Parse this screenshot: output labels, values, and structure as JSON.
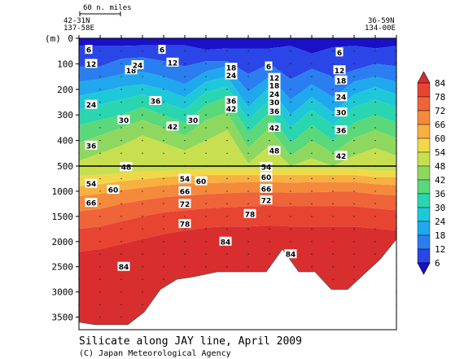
{
  "chart_data": {
    "type": "heatmap",
    "title": "Silicate along JAY line, April 2009",
    "credit": "(C) Japan Meteorological Agency",
    "ylabel": "(m)",
    "scale_bar_label": "60 n. miles",
    "left_station": {
      "lat": "42-31N",
      "lon": "137-58E"
    },
    "right_station": {
      "lat": "36-59N",
      "lon": "134-00E"
    },
    "upper_panel": {
      "ylim": [
        0,
        500
      ],
      "yticks": [
        0,
        100,
        200,
        300,
        400,
        500
      ]
    },
    "lower_panel": {
      "ylim": [
        500,
        3750
      ],
      "yticks": [
        500,
        1000,
        1500,
        2000,
        2500,
        3000,
        3500
      ]
    },
    "colorbar": {
      "levels": [
        6,
        12,
        18,
        24,
        30,
        36,
        42,
        48,
        54,
        60,
        66,
        72,
        78,
        84
      ],
      "colors": [
        "#1a10c8",
        "#2a46e6",
        "#2a7ef0",
        "#1fa8ee",
        "#1fc8d8",
        "#2ad6b0",
        "#5ad87a",
        "#8ed860",
        "#c8e050",
        "#f0d84a",
        "#f8b040",
        "#f58a3c",
        "#ef6438",
        "#e84432",
        "#d92e2e"
      ]
    },
    "contour_labels": [
      {
        "v": "6",
        "x": 12,
        "d": 45
      },
      {
        "v": "6",
        "x": 102,
        "d": 45
      },
      {
        "v": "6",
        "x": 233,
        "d": 110
      },
      {
        "v": "6",
        "x": 320,
        "d": 55
      },
      {
        "v": "12",
        "x": 15,
        "d": 100
      },
      {
        "v": "12",
        "x": 115,
        "d": 95
      },
      {
        "v": "12",
        "x": 240,
        "d": 155
      },
      {
        "v": "12",
        "x": 320,
        "d": 125
      },
      {
        "v": "18",
        "x": 64,
        "d": 125
      },
      {
        "v": "18",
        "x": 187,
        "d": 115
      },
      {
        "v": "18",
        "x": 240,
        "d": 185
      },
      {
        "v": "18",
        "x": 322,
        "d": 165
      },
      {
        "v": "24",
        "x": 72,
        "d": 105
      },
      {
        "v": "24",
        "x": 15,
        "d": 260
      },
      {
        "v": "24",
        "x": 187,
        "d": 145
      },
      {
        "v": "24",
        "x": 240,
        "d": 218
      },
      {
        "v": "24",
        "x": 322,
        "d": 230
      },
      {
        "v": "30",
        "x": 55,
        "d": 320
      },
      {
        "v": "30",
        "x": 140,
        "d": 320
      },
      {
        "v": "30",
        "x": 240,
        "d": 250
      },
      {
        "v": "30",
        "x": 322,
        "d": 290
      },
      {
        "v": "36",
        "x": 94,
        "d": 245
      },
      {
        "v": "36",
        "x": 187,
        "d": 245
      },
      {
        "v": "36",
        "x": 240,
        "d": 285
      },
      {
        "v": "36",
        "x": 15,
        "d": 420
      },
      {
        "v": "36",
        "x": 322,
        "d": 360
      },
      {
        "v": "42",
        "x": 115,
        "d": 345
      },
      {
        "v": "42",
        "x": 187,
        "d": 275
      },
      {
        "v": "42",
        "x": 240,
        "d": 350
      },
      {
        "v": "42",
        "x": 322,
        "d": 460
      },
      {
        "v": "48",
        "x": 240,
        "d": 440
      },
      {
        "v": "48",
        "x": 58,
        "d": 520
      },
      {
        "v": "54",
        "x": 15,
        "d": 850
      },
      {
        "v": "54",
        "x": 130,
        "d": 750
      },
      {
        "v": "54",
        "x": 230,
        "d": 520
      },
      {
        "v": "60",
        "x": 42,
        "d": 970
      },
      {
        "v": "60",
        "x": 150,
        "d": 800
      },
      {
        "v": "60",
        "x": 230,
        "d": 720
      },
      {
        "v": "66",
        "x": 15,
        "d": 1230
      },
      {
        "v": "66",
        "x": 130,
        "d": 1000
      },
      {
        "v": "66",
        "x": 230,
        "d": 950
      },
      {
        "v": "72",
        "x": 130,
        "d": 1250
      },
      {
        "v": "72",
        "x": 230,
        "d": 1180
      },
      {
        "v": "78",
        "x": 130,
        "d": 1650
      },
      {
        "v": "78",
        "x": 210,
        "d": 1450
      },
      {
        "v": "84",
        "x": 180,
        "d": 2000
      },
      {
        "v": "84",
        "x": 55,
        "d": 2500
      },
      {
        "v": "84",
        "x": 260,
        "d": 2250
      }
    ],
    "colorbar_labels": [
      "84",
      "78",
      "72",
      "66",
      "60",
      "54",
      "48",
      "42",
      "36",
      "30",
      "24",
      "18",
      "12",
      "6"
    ]
  }
}
